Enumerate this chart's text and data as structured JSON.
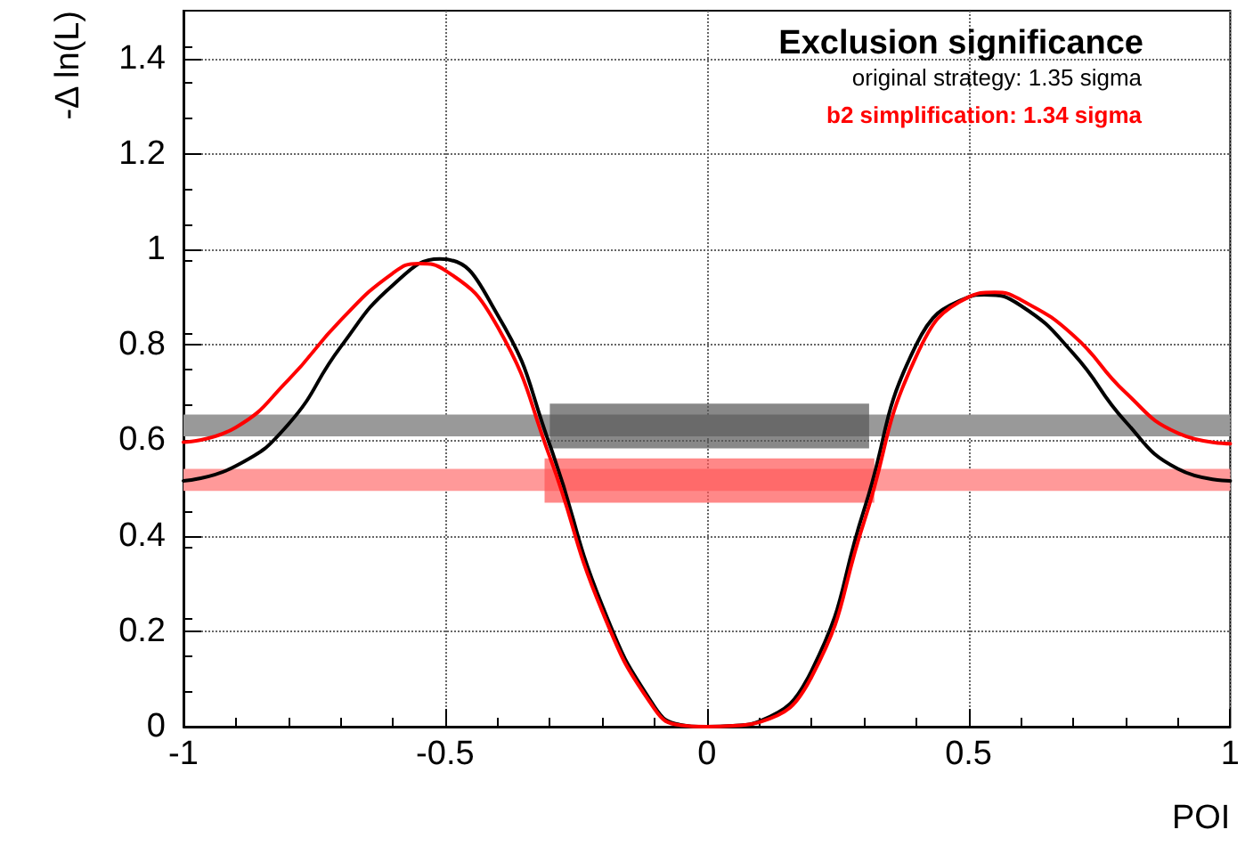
{
  "chart_data": {
    "type": "line",
    "title": "Exclusion significance",
    "xlabel": "POI",
    "ylabel": "-Δ ln(L)",
    "annotations": [
      "original strategy: 1.35 sigma",
      "b2 simplification: 1.34 sigma"
    ],
    "xlim": [
      -1,
      1
    ],
    "xticks": [
      -1,
      -0.5,
      0,
      0.5,
      1
    ],
    "ylim": [
      0,
      1.5
    ],
    "yticks": [
      0,
      0.2,
      0.4,
      0.6,
      0.8,
      1,
      1.2,
      1.4
    ],
    "grid": true,
    "marker": "none",
    "line_style": "solid",
    "bands": [
      {
        "axis": "y",
        "from": 0.608,
        "to": 0.654,
        "color": "#999999"
      },
      {
        "axis": "y",
        "from": 0.494,
        "to": 0.54,
        "color": "#ff9999"
      }
    ],
    "series": [
      {
        "color": "#000000",
        "x": [
          -1,
          -0.9,
          -0.8,
          -0.7,
          -0.6,
          -0.51,
          -0.4,
          -0.3,
          -0.2,
          -0.1,
          -0.05,
          0,
          0.05,
          0.1,
          0.2,
          0.3,
          0.4,
          0.5,
          0.53,
          0.6,
          0.7,
          0.8,
          0.9,
          1
        ],
        "values": [
          0.515,
          0.546,
          0.633,
          0.795,
          0.925,
          0.98,
          0.863,
          0.59,
          0.254,
          0.042,
          0.004,
          0,
          0.002,
          0.011,
          0.117,
          0.453,
          0.8,
          0.9,
          0.905,
          0.882,
          0.782,
          0.639,
          0.54,
          0.515
        ]
      },
      {
        "color": "#ff0000",
        "x": [
          -1,
          -0.9,
          -0.8,
          -0.7,
          -0.6,
          -0.55,
          -0.5,
          -0.4,
          -0.3,
          -0.2,
          -0.1,
          -0.05,
          0,
          0.05,
          0.1,
          0.2,
          0.3,
          0.4,
          0.5,
          0.55,
          0.6,
          0.7,
          0.8,
          0.9,
          1
        ],
        "values": [
          0.596,
          0.627,
          0.726,
          0.851,
          0.95,
          0.97,
          0.956,
          0.838,
          0.565,
          0.242,
          0.037,
          0.003,
          0,
          0.002,
          0.009,
          0.104,
          0.428,
          0.776,
          0.9,
          0.91,
          0.894,
          0.82,
          0.7,
          0.615,
          0.593
        ]
      },
      {
        "type": "area",
        "color": "#555555",
        "x": [
          -0.3,
          0.31
        ],
        "values": [
          null,
          null
        ],
        "lower": [
          0.583,
          0.583
        ],
        "upper": [
          0.677,
          0.677
        ]
      },
      {
        "type": "area",
        "color": "#ff5555",
        "x": [
          -0.31,
          0.32
        ],
        "values": [
          null,
          null
        ],
        "lower": [
          0.469,
          0.469
        ],
        "upper": [
          0.562,
          0.562
        ]
      }
    ]
  }
}
